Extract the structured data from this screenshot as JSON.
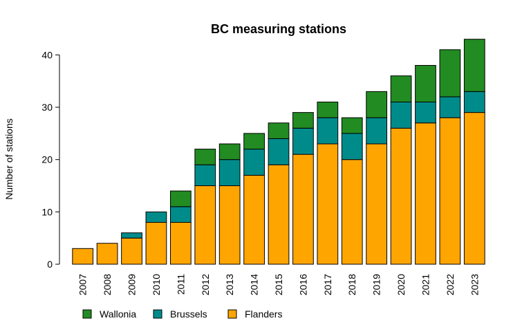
{
  "chart_data": {
    "type": "bar",
    "stacked": true,
    "title": "BC measuring stations",
    "xlabel": "",
    "ylabel": "Number of stations",
    "ylim": [
      0,
      43
    ],
    "yticks": [
      0,
      10,
      20,
      30,
      40
    ],
    "categories": [
      "2007",
      "2008",
      "2009",
      "2010",
      "2011",
      "2012",
      "2013",
      "2014",
      "2015",
      "2016",
      "2017",
      "2018",
      "2019",
      "2020",
      "2021",
      "2022",
      "2023"
    ],
    "series": [
      {
        "name": "Flanders",
        "color": "#ffa500",
        "values": [
          3,
          4,
          5,
          8,
          8,
          15,
          15,
          17,
          19,
          21,
          23,
          20,
          23,
          26,
          27,
          28,
          29
        ]
      },
      {
        "name": "Brussels",
        "color": "#008b8b",
        "values": [
          0,
          0,
          1,
          2,
          3,
          4,
          5,
          5,
          5,
          5,
          5,
          5,
          5,
          5,
          4,
          4,
          4
        ]
      },
      {
        "name": "Wallonia",
        "color": "#228b22",
        "values": [
          0,
          0,
          0,
          0,
          3,
          3,
          3,
          3,
          3,
          3,
          3,
          3,
          5,
          5,
          7,
          9,
          10
        ]
      }
    ],
    "legend": {
      "placement": "bottom-left",
      "order": [
        "Wallonia",
        "Brussels",
        "Flanders"
      ]
    },
    "grid": false
  }
}
